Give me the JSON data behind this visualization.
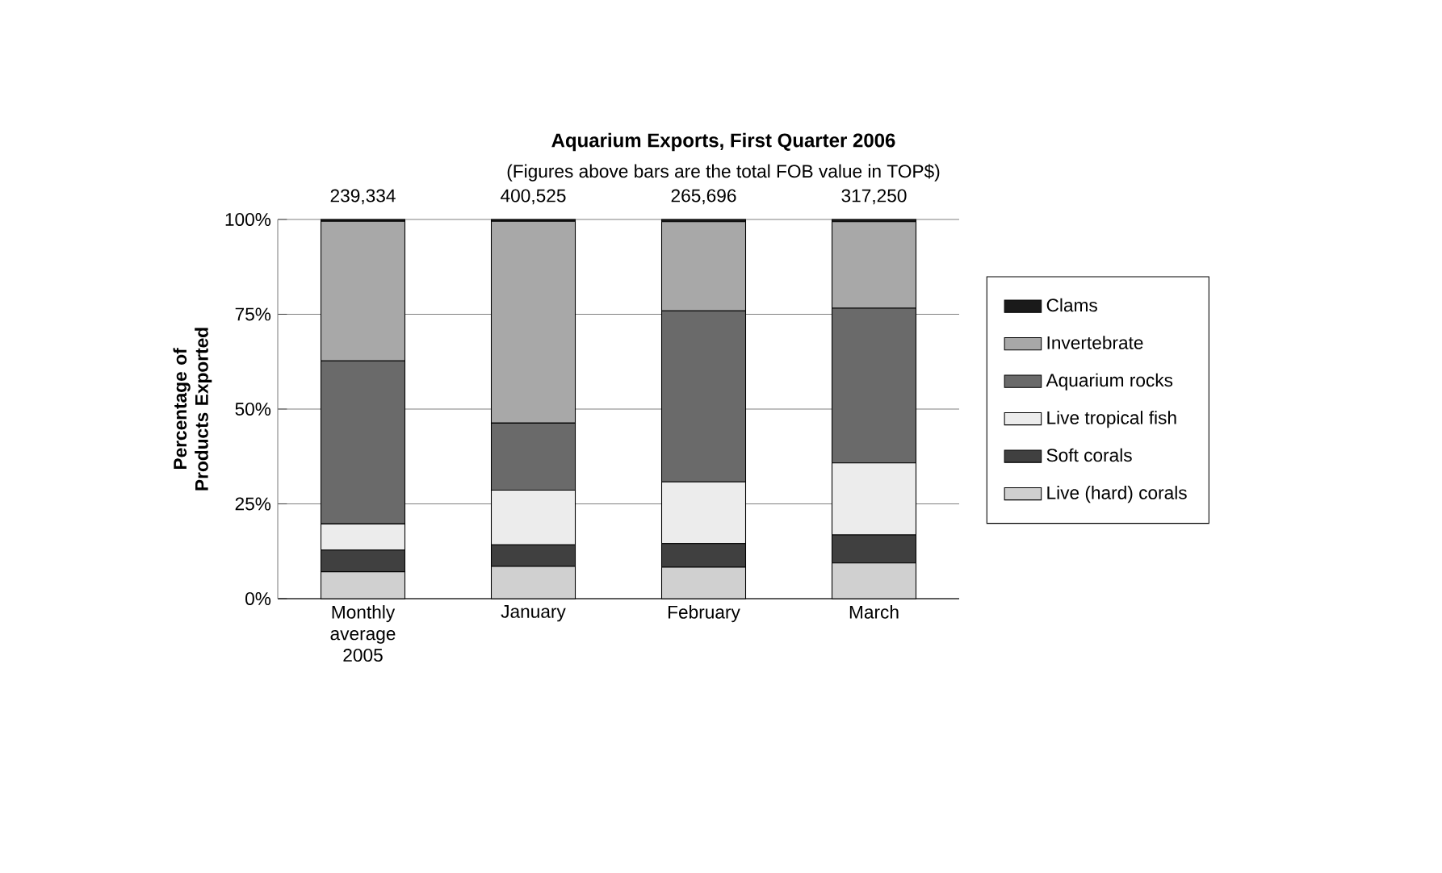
{
  "chart_data": {
    "type": "bar",
    "stacked": true,
    "title": "Aquarium Exports, First Quarter 2006",
    "subtitle": "(Figures above bars are the total FOB value in TOP$)",
    "ylabel": "Percentage of Products Exported",
    "categories": [
      "Monthly average 2005",
      "January",
      "February",
      "March"
    ],
    "series": [
      {
        "name": "Live (hard) corals",
        "color": "#d0d0d0",
        "values": [
          7.1,
          8.5,
          8.3,
          9.4
        ]
      },
      {
        "name": "Soft corals",
        "color": "#404040",
        "values": [
          5.7,
          5.7,
          6.2,
          7.4
        ]
      },
      {
        "name": "Live tropical fish",
        "color": "#ececec",
        "values": [
          6.9,
          14.4,
          16.3,
          19
        ]
      },
      {
        "name": "Aquarium rocks",
        "color": "#6a6a6a",
        "values": [
          43,
          17.7,
          45.1,
          40.8
        ]
      },
      {
        "name": "Invertebrate",
        "color": "#a8a8a8",
        "values": [
          36.8,
          53.2,
          23.5,
          22.8
        ]
      },
      {
        "name": "Clams",
        "color": "#1a1a1a",
        "values": [
          0.5,
          0.5,
          0.6,
          0.6
        ]
      }
    ],
    "annotations": [
      {
        "text": "239,334",
        "x": "Monthly average 2005",
        "y": 100
      },
      {
        "text": "400,525",
        "x": "January",
        "y": 100
      },
      {
        "text": "265,696",
        "x": "February",
        "y": 100
      },
      {
        "text": "317,250",
        "x": "March",
        "y": 100
      }
    ],
    "ylim": [
      0,
      100
    ],
    "yticks": [
      {
        "value": 0,
        "label": "0%"
      },
      {
        "value": 25,
        "label": "25%"
      },
      {
        "value": 50,
        "label": "50%"
      },
      {
        "value": 75,
        "label": "75%"
      },
      {
        "value": 100,
        "label": "100%"
      }
    ],
    "grid": "y",
    "legend": "right"
  }
}
